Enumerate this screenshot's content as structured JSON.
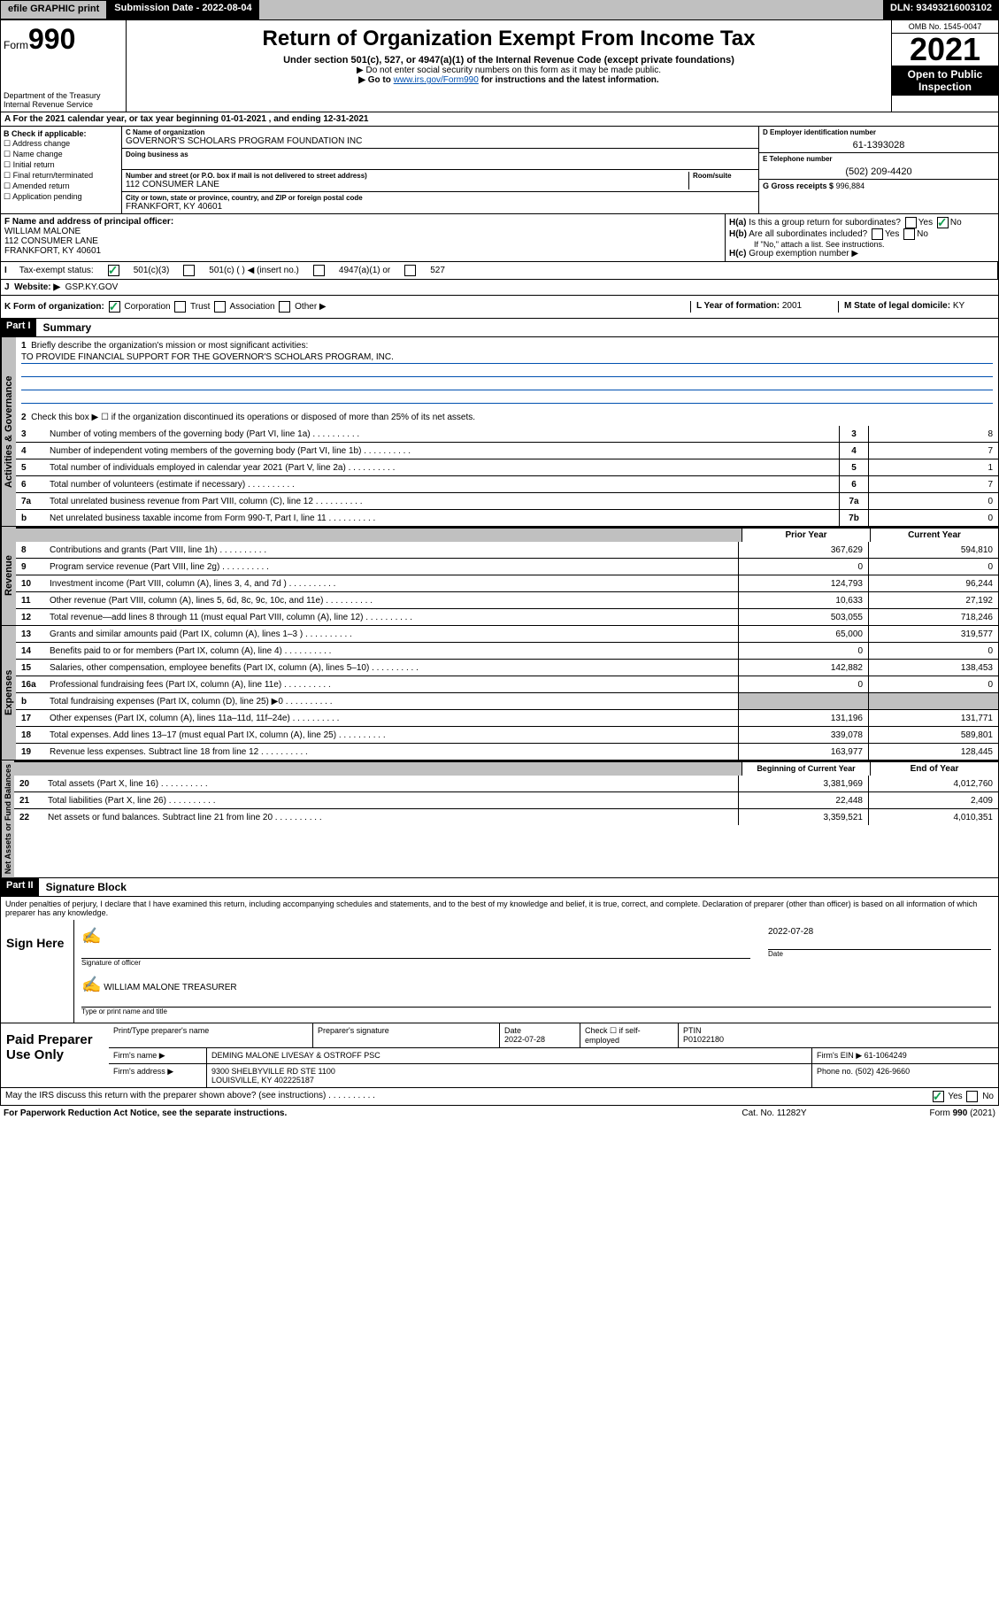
{
  "top": {
    "efile": "efile GRAPHIC print",
    "subdate": "Submission Date - 2022-08-04",
    "dln": "DLN: 93493216003102"
  },
  "header": {
    "form": "Form",
    "formnum": "990",
    "dept": "Department of the Treasury",
    "irs": "Internal Revenue Service",
    "title": "Return of Organization Exempt From Income Tax",
    "sub1": "Under section 501(c), 527, or 4947(a)(1) of the Internal Revenue Code (except private foundations)",
    "sub2": "▶ Do not enter social security numbers on this form as it may be made public.",
    "sub3": "▶ Go to ",
    "sub3link": "www.irs.gov/Form990",
    "sub3b": " for instructions and the latest information.",
    "omb": "OMB No. 1545-0047",
    "year": "2021",
    "open": "Open to Public Inspection"
  },
  "A": "For the 2021 calendar year, or tax year beginning 01-01-2021   , and ending 12-31-2021",
  "B": {
    "label": "B Check if applicable:",
    "items": [
      "Address change",
      "Name change",
      "Initial return",
      "Final return/terminated",
      "Amended return",
      "Application pending"
    ]
  },
  "C": {
    "nameLabel": "C Name of organization",
    "name": "GOVERNOR'S SCHOLARS PROGRAM FOUNDATION INC",
    "dba": "Doing business as",
    "addrLabel": "Number and street (or P.O. box if mail is not delivered to street address)",
    "room": "Room/suite",
    "addr": "112 CONSUMER LANE",
    "cityLabel": "City or town, state or province, country, and ZIP or foreign postal code",
    "city": "FRANKFORT, KY  40601"
  },
  "D": {
    "label": "D Employer identification number",
    "val": "61-1393028"
  },
  "E": {
    "label": "E Telephone number",
    "val": "(502) 209-4420"
  },
  "G": {
    "label": "G Gross receipts $",
    "val": "996,884"
  },
  "F": {
    "label": "F Name and address of principal officer:",
    "name": "WILLIAM MALONE",
    "addr": "112 CONSUMER LANE",
    "city": "FRANKFORT, KY  40601"
  },
  "H": {
    "a": "Is this a group return for subordinates?",
    "b": "Are all subordinates included?",
    "note": "If \"No,\" attach a list. See instructions.",
    "c": "Group exemption number ▶",
    "yes": "Yes",
    "no": "No"
  },
  "I": {
    "label": "Tax-exempt status:",
    "opt1": "501(c)(3)",
    "opt2": "501(c) (   ) ◀ (insert no.)",
    "opt3": "4947(a)(1) or",
    "opt4": "527"
  },
  "J": {
    "label": "Website: ▶",
    "val": "GSP.KY.GOV"
  },
  "K": {
    "label": "K Form of organization:",
    "opts": [
      "Corporation",
      "Trust",
      "Association",
      "Other ▶"
    ]
  },
  "L": {
    "label": "L Year of formation:",
    "val": "2001"
  },
  "M": {
    "label": "M State of legal domicile:",
    "val": "KY"
  },
  "part1": {
    "hdr": "Part I",
    "title": "Summary",
    "l1": "Briefly describe the organization's mission or most significant activities:",
    "mission": "TO PROVIDE FINANCIAL SUPPORT FOR THE GOVERNOR'S SCHOLARS PROGRAM, INC.",
    "l2": "Check this box ▶ ☐  if the organization discontinued its operations or disposed of more than 25% of its net assets.",
    "lines3_7": [
      {
        "n": "3",
        "t": "Number of voting members of the governing body (Part VI, line 1a)",
        "c": "3",
        "v": "8"
      },
      {
        "n": "4",
        "t": "Number of independent voting members of the governing body (Part VI, line 1b)",
        "c": "4",
        "v": "7"
      },
      {
        "n": "5",
        "t": "Total number of individuals employed in calendar year 2021 (Part V, line 2a)",
        "c": "5",
        "v": "1"
      },
      {
        "n": "6",
        "t": "Total number of volunteers (estimate if necessary)",
        "c": "6",
        "v": "7"
      },
      {
        "n": "7a",
        "t": "Total unrelated business revenue from Part VIII, column (C), line 12",
        "c": "7a",
        "v": "0"
      },
      {
        "n": "b",
        "t": "Net unrelated business taxable income from Form 990-T, Part I, line 11",
        "c": "7b",
        "v": "0"
      }
    ],
    "colhdr1": "Prior Year",
    "colhdr2": "Current Year",
    "revenue": [
      {
        "n": "8",
        "t": "Contributions and grants (Part VIII, line 1h)",
        "p": "367,629",
        "c": "594,810"
      },
      {
        "n": "9",
        "t": "Program service revenue (Part VIII, line 2g)",
        "p": "0",
        "c": "0"
      },
      {
        "n": "10",
        "t": "Investment income (Part VIII, column (A), lines 3, 4, and 7d )",
        "p": "124,793",
        "c": "96,244"
      },
      {
        "n": "11",
        "t": "Other revenue (Part VIII, column (A), lines 5, 6d, 8c, 9c, 10c, and 11e)",
        "p": "10,633",
        "c": "27,192"
      },
      {
        "n": "12",
        "t": "Total revenue—add lines 8 through 11 (must equal Part VIII, column (A), line 12)",
        "p": "503,055",
        "c": "718,246"
      }
    ],
    "expenses": [
      {
        "n": "13",
        "t": "Grants and similar amounts paid (Part IX, column (A), lines 1–3 )",
        "p": "65,000",
        "c": "319,577"
      },
      {
        "n": "14",
        "t": "Benefits paid to or for members (Part IX, column (A), line 4)",
        "p": "0",
        "c": "0"
      },
      {
        "n": "15",
        "t": "Salaries, other compensation, employee benefits (Part IX, column (A), lines 5–10)",
        "p": "142,882",
        "c": "138,453"
      },
      {
        "n": "16a",
        "t": "Professional fundraising fees (Part IX, column (A), line 11e)",
        "p": "0",
        "c": "0"
      },
      {
        "n": "b",
        "t": "Total fundraising expenses (Part IX, column (D), line 25) ▶0",
        "p": "",
        "c": "",
        "grey": true
      },
      {
        "n": "17",
        "t": "Other expenses (Part IX, column (A), lines 11a–11d, 11f–24e)",
        "p": "131,196",
        "c": "131,771"
      },
      {
        "n": "18",
        "t": "Total expenses. Add lines 13–17 (must equal Part IX, column (A), line 25)",
        "p": "339,078",
        "c": "589,801"
      },
      {
        "n": "19",
        "t": "Revenue less expenses. Subtract line 18 from line 12",
        "p": "163,977",
        "c": "128,445"
      }
    ],
    "nethdr1": "Beginning of Current Year",
    "nethdr2": "End of Year",
    "net": [
      {
        "n": "20",
        "t": "Total assets (Part X, line 16)",
        "p": "3,381,969",
        "c": "4,012,760"
      },
      {
        "n": "21",
        "t": "Total liabilities (Part X, line 26)",
        "p": "22,448",
        "c": "2,409"
      },
      {
        "n": "22",
        "t": "Net assets or fund balances. Subtract line 21 from line 20",
        "p": "3,359,521",
        "c": "4,010,351"
      }
    ]
  },
  "part2": {
    "hdr": "Part II",
    "title": "Signature Block",
    "decl": "Under penalties of perjury, I declare that I have examined this return, including accompanying schedules and statements, and to the best of my knowledge and belief, it is true, correct, and complete. Declaration of preparer (other than officer) is based on all information of which preparer has any knowledge."
  },
  "sign": {
    "here": "Sign Here",
    "sigoff": "Signature of officer",
    "date": "Date",
    "dateval": "2022-07-28",
    "name": "WILLIAM MALONE  TREASURER",
    "typelabel": "Type or print name and title"
  },
  "prep": {
    "label": "Paid Preparer Use Only",
    "h1": "Print/Type preparer's name",
    "h2": "Preparer's signature",
    "h3": "Date",
    "h3v": "2022-07-28",
    "h4": "Check ☐ if self-employed",
    "h5": "PTIN",
    "h5v": "P01022180",
    "firm": "Firm's name    ▶",
    "firmv": "DEMING MALONE LIVESAY & OSTROFF PSC",
    "ein": "Firm's EIN ▶",
    "einv": "61-1064249",
    "addr": "Firm's address ▶",
    "addrv": "9300 SHELBYVILLE RD STE 1100",
    "city": "LOUISVILLE, KY  402225187",
    "phone": "Phone no.",
    "phonev": "(502) 426-9660"
  },
  "footer": {
    "may": "May the IRS discuss this return with the preparer shown above? (see instructions)",
    "paper": "For Paperwork Reduction Act Notice, see the separate instructions.",
    "cat": "Cat. No. 11282Y",
    "form": "Form 990 (2021)",
    "yes": "Yes",
    "no": "No"
  },
  "tabs": {
    "act": "Activities & Governance",
    "rev": "Revenue",
    "exp": "Expenses",
    "net": "Net Assets or Fund Balances"
  }
}
